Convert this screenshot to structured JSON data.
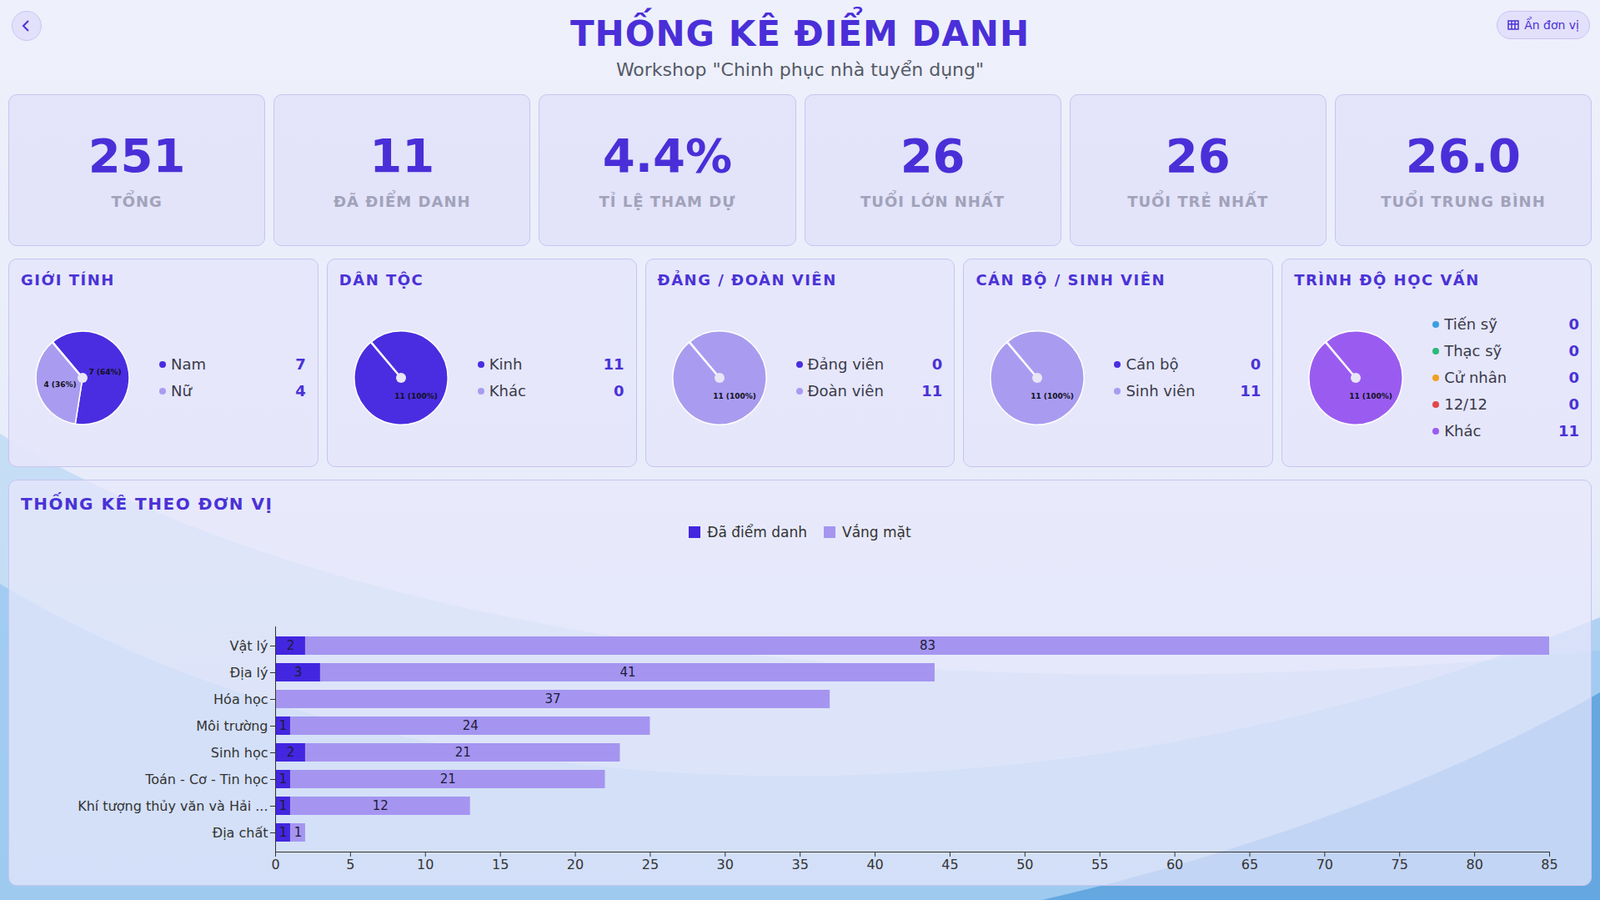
{
  "header": {
    "title": "THỐNG KÊ ĐIỂM DANH",
    "subtitle": "Workshop \"Chinh phục nhà tuyển dụng\"",
    "button": "Ẩn đơn vị"
  },
  "cards": [
    {
      "label": "TỔNG",
      "value": 251
    },
    {
      "label": "ĐÃ ĐIỂM DANH",
      "value": 11
    },
    {
      "label": "TỈ LỆ THAM DỰ",
      "value": 4.4,
      "value_label": "4.4%"
    },
    {
      "label": "TUỔI LỚN NHẤT",
      "value": 26
    },
    {
      "label": "TUỔI TRẺ NHẤT",
      "value": 26
    },
    {
      "label": "TUỔI TRUNG BÌNH",
      "value": 26,
      "value_label": "26.0"
    }
  ],
  "chart_data": [
    {
      "type": "pie",
      "title": "GIỚI TÍNH",
      "categories": [
        "Nam",
        "Nữ"
      ],
      "values": [
        7,
        4
      ],
      "value_labels": [
        "7 (64%)",
        "4 (36%)"
      ],
      "colors": [
        "#4a2de0",
        "#a99cf0"
      ],
      "data_labels": true,
      "legend": "right"
    },
    {
      "type": "pie",
      "title": "DÂN TỘC",
      "categories": [
        "Kinh",
        "Khác"
      ],
      "values": [
        11,
        0
      ],
      "value_labels": [
        "11 (100%)",
        null
      ],
      "colors": [
        "#4a2de0",
        "#a99cf0"
      ],
      "data_labels": true,
      "legend": "right"
    },
    {
      "type": "pie",
      "title": "ĐẢNG / ĐOÀN VIÊN",
      "categories": [
        "Đảng viên",
        "Đoàn viên"
      ],
      "values": [
        0,
        11
      ],
      "value_labels": [
        null,
        "11 (100%)"
      ],
      "colors": [
        "#4a2de0",
        "#a99cf0"
      ],
      "data_labels": true,
      "legend": "right"
    },
    {
      "type": "pie",
      "title": "CÁN BỘ / SINH VIÊN",
      "categories": [
        "Cán bộ",
        "Sinh viên"
      ],
      "values": [
        0,
        11
      ],
      "value_labels": [
        null,
        "11 (100%)"
      ],
      "colors": [
        "#4a2de0",
        "#a99cf0"
      ],
      "data_labels": true,
      "legend": "right"
    },
    {
      "type": "pie",
      "title": "TRÌNH ĐỘ HỌC VẤN",
      "categories": [
        "Tiến sỹ",
        "Thạc sỹ",
        "Cử nhân",
        "12/12",
        "Khác"
      ],
      "values": [
        0,
        0,
        0,
        0,
        11
      ],
      "value_labels": [
        null,
        null,
        null,
        null,
        "11 (100%)"
      ],
      "colors": [
        "#3b9ee0",
        "#2eb87a",
        "#f0a020",
        "#e04848",
        "#9a5cf0"
      ],
      "data_labels": true,
      "legend": "right"
    },
    {
      "type": "bar",
      "title": "THỐNG KÊ THEO ĐƠN VỊ",
      "orientation": "horizontal",
      "stacked": true,
      "categories": [
        "Vật lý",
        "Địa lý",
        "Hóa học",
        "Môi trường",
        "Sinh học",
        "Toán - Cơ - Tin học",
        "Khí tượng thủy văn và Hải ...",
        "Địa chất"
      ],
      "series": [
        {
          "name": "Đã điểm danh",
          "color": "#4326e0",
          "values": [
            2,
            3,
            0,
            1,
            2,
            1,
            1,
            1
          ]
        },
        {
          "name": "Vắng mặt",
          "color": "#a595f0",
          "values": [
            83,
            41,
            37,
            24,
            21,
            21,
            12,
            1
          ]
        }
      ],
      "xlim": [
        0,
        85
      ],
      "xticks": [
        0,
        5,
        10,
        15,
        20,
        25,
        30,
        35,
        40,
        45,
        50,
        55,
        60,
        65,
        70,
        75,
        80,
        85
      ],
      "grid": false,
      "data_labels": true,
      "legend": "top"
    }
  ]
}
